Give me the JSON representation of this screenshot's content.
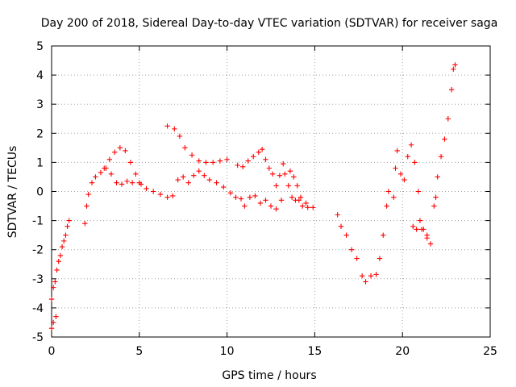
{
  "chart_data": {
    "type": "scatter",
    "title": "Day 200 of 2018, Sidereal Day-to-day VTEC variation (SDTVAR) for receiver saga",
    "xlabel": "GPS time / hours",
    "ylabel": "SDTVAR / TECUs",
    "xlim": [
      0,
      25
    ],
    "ylim": [
      -5,
      5
    ],
    "xticks": [
      0,
      5,
      10,
      15,
      20,
      25
    ],
    "yticks": [
      -5,
      -4,
      -3,
      -2,
      -1,
      0,
      1,
      2,
      3,
      4,
      5
    ],
    "xtick_labels": [
      "0",
      "5",
      "10",
      "15",
      "20",
      "25"
    ],
    "ytick_labels": [
      "-5",
      "-4",
      "-3",
      "-2",
      "-1",
      "0",
      "1",
      "2",
      "3",
      "4",
      "5"
    ],
    "grid": true,
    "marker": "plus",
    "color": "#ff0000",
    "series": [
      {
        "name": "SDTVAR",
        "segments": [
          [
            [
              0.0,
              -4.7
            ],
            [
              0.1,
              -4.5
            ],
            [
              0.25,
              -4.3
            ]
          ],
          [
            [
              0.0,
              -3.7
            ],
            [
              0.1,
              -3.3
            ],
            [
              0.2,
              -3.1
            ],
            [
              0.3,
              -2.7
            ],
            [
              0.4,
              -2.4
            ],
            [
              0.5,
              -2.2
            ],
            [
              0.6,
              -1.9
            ],
            [
              0.7,
              -1.7
            ],
            [
              0.8,
              -1.5
            ],
            [
              0.9,
              -1.2
            ],
            [
              1.0,
              -1.0
            ]
          ],
          [
            [
              1.9,
              -1.1
            ],
            [
              2.0,
              -0.5
            ],
            [
              2.1,
              -0.1
            ],
            [
              2.3,
              0.3
            ],
            [
              2.5,
              0.5
            ],
            [
              2.8,
              0.65
            ],
            [
              3.1,
              0.8
            ],
            [
              3.4,
              0.6
            ],
            [
              3.7,
              0.3
            ],
            [
              4.0,
              0.25
            ],
            [
              4.3,
              0.35
            ],
            [
              4.6,
              0.3
            ],
            [
              5.0,
              0.3
            ],
            [
              5.4,
              0.1
            ],
            [
              5.8,
              0.0
            ],
            [
              6.2,
              -0.1
            ],
            [
              6.6,
              -0.2
            ],
            [
              6.9,
              -0.15
            ]
          ],
          [
            [
              3.0,
              0.8
            ],
            [
              3.3,
              1.1
            ],
            [
              3.6,
              1.35
            ],
            [
              3.9,
              1.5
            ],
            [
              4.2,
              1.4
            ],
            [
              4.5,
              1.0
            ],
            [
              4.8,
              0.6
            ],
            [
              5.1,
              0.25
            ]
          ],
          [
            [
              6.6,
              2.25
            ],
            [
              7.0,
              2.15
            ],
            [
              7.3,
              1.9
            ],
            [
              7.6,
              1.5
            ],
            [
              8.0,
              1.25
            ],
            [
              8.4,
              1.05
            ],
            [
              8.8,
              1.0
            ],
            [
              9.2,
              1.0
            ],
            [
              9.6,
              1.05
            ],
            [
              10.0,
              1.1
            ]
          ],
          [
            [
              7.2,
              0.4
            ],
            [
              7.5,
              0.5
            ],
            [
              7.8,
              0.3
            ],
            [
              8.1,
              0.55
            ],
            [
              8.4,
              0.7
            ],
            [
              8.7,
              0.55
            ],
            [
              9.0,
              0.4
            ],
            [
              9.4,
              0.3
            ],
            [
              9.8,
              0.15
            ],
            [
              10.2,
              -0.05
            ],
            [
              10.5,
              -0.2
            ],
            [
              10.8,
              -0.25
            ]
          ],
          [
            [
              10.6,
              0.9
            ],
            [
              10.9,
              0.85
            ],
            [
              11.2,
              1.05
            ],
            [
              11.5,
              1.2
            ],
            [
              11.8,
              1.35
            ],
            [
              12.0,
              1.45
            ],
            [
              12.2,
              1.1
            ],
            [
              12.4,
              0.8
            ],
            [
              12.6,
              0.6
            ],
            [
              12.8,
              0.2
            ],
            [
              13.0,
              0.55
            ],
            [
              13.2,
              0.95
            ]
          ],
          [
            [
              11.0,
              -0.5
            ],
            [
              11.3,
              -0.2
            ],
            [
              11.6,
              -0.15
            ],
            [
              11.9,
              -0.4
            ],
            [
              12.2,
              -0.3
            ],
            [
              12.5,
              -0.5
            ],
            [
              12.8,
              -0.6
            ],
            [
              13.1,
              -0.3
            ]
          ],
          [
            [
              13.3,
              0.6
            ],
            [
              13.6,
              0.7
            ],
            [
              13.8,
              0.5
            ],
            [
              14.0,
              0.2
            ],
            [
              14.1,
              -0.3
            ],
            [
              14.3,
              -0.5
            ],
            [
              14.6,
              -0.55
            ],
            [
              14.9,
              -0.55
            ]
          ],
          [
            [
              13.5,
              0.2
            ],
            [
              13.7,
              -0.2
            ],
            [
              13.9,
              -0.3
            ],
            [
              14.2,
              -0.2
            ],
            [
              14.5,
              -0.4
            ]
          ],
          [
            [
              16.3,
              -0.8
            ],
            [
              16.5,
              -1.2
            ],
            [
              16.8,
              -1.5
            ],
            [
              17.1,
              -2.0
            ],
            [
              17.4,
              -2.3
            ],
            [
              17.7,
              -2.9
            ],
            [
              17.9,
              -3.1
            ],
            [
              18.2,
              -2.9
            ],
            [
              18.5,
              -2.85
            ],
            [
              18.7,
              -2.3
            ],
            [
              18.9,
              -1.5
            ],
            [
              19.1,
              -0.5
            ],
            [
              19.2,
              0.0
            ]
          ],
          [
            [
              19.5,
              -0.2
            ],
            [
              19.6,
              0.8
            ],
            [
              19.7,
              1.4
            ],
            [
              19.9,
              0.6
            ],
            [
              20.1,
              0.4
            ],
            [
              20.3,
              1.2
            ],
            [
              20.5,
              1.6
            ],
            [
              20.7,
              1.0
            ],
            [
              20.9,
              0.0
            ],
            [
              21.0,
              -1.0
            ],
            [
              21.2,
              -1.3
            ],
            [
              21.4,
              -1.5
            ]
          ],
          [
            [
              20.6,
              -1.2
            ],
            [
              20.8,
              -1.3
            ],
            [
              21.1,
              -1.3
            ],
            [
              21.4,
              -1.6
            ],
            [
              21.6,
              -1.8
            ],
            [
              21.8,
              -0.5
            ],
            [
              21.9,
              -0.2
            ],
            [
              22.0,
              0.5
            ],
            [
              22.2,
              1.2
            ],
            [
              22.4,
              1.8
            ],
            [
              22.6,
              2.5
            ],
            [
              22.8,
              3.5
            ],
            [
              22.9,
              4.2
            ],
            [
              23.0,
              4.35
            ]
          ]
        ]
      }
    ]
  }
}
